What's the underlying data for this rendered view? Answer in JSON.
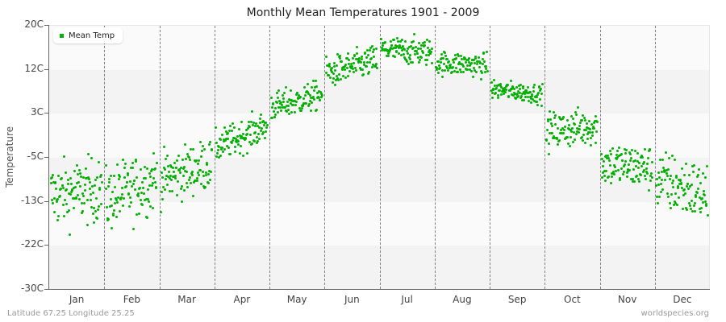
{
  "title": "Monthly Mean Temperatures 1901 - 2009",
  "footer": {
    "location": "Latitude 67.25 Longitude 25.25",
    "source": "worldspecies.org"
  },
  "colors": {
    "dot": "#00b200",
    "band_light": "#fafafa",
    "band_dark": "#f3f3f3",
    "axis": "#666666",
    "separator": "#808080"
  },
  "chart_data": {
    "type": "scatter",
    "title": "Monthly Mean Temperatures 1901 - 2009",
    "xlabel": "",
    "ylabel": "Temperature",
    "ylim": [
      -30,
      20
    ],
    "yticks": [
      {
        "value": 20,
        "label": "20C"
      },
      {
        "value": 11.67,
        "label": "12C"
      },
      {
        "value": 3.33,
        "label": "3C"
      },
      {
        "value": -5,
        "label": "-5C"
      },
      {
        "value": -13.33,
        "label": "-13C"
      },
      {
        "value": -21.67,
        "label": "-22C"
      },
      {
        "value": -30,
        "label": "-30C"
      }
    ],
    "categories": [
      "Jan",
      "Feb",
      "Mar",
      "Apr",
      "May",
      "Jun",
      "Jul",
      "Aug",
      "Sep",
      "Oct",
      "Nov",
      "Dec"
    ],
    "legend": [
      {
        "label": "Mean Temp",
        "color": "#00b200"
      }
    ],
    "legend_position": "top-left",
    "grid": "alternating horizontal bands, dashed vertical month separators",
    "points_per_month": 109,
    "series": [
      {
        "name": "Mean Temp",
        "monthly": [
          {
            "month": "Jan",
            "mean_start": -12,
            "mean_end": -11,
            "spread": 4.0,
            "min": -22,
            "max": -4
          },
          {
            "month": "Feb",
            "mean_start": -13,
            "mean_end": -9,
            "spread": 4.0,
            "min": -24,
            "max": -4
          },
          {
            "month": "Mar",
            "mean_start": -9,
            "mean_end": -6,
            "spread": 3.2,
            "min": -17,
            "max": -2
          },
          {
            "month": "Apr",
            "mean_start": -3,
            "mean_end": 1,
            "spread": 2.0,
            "min": -6,
            "max": 4
          },
          {
            "month": "May",
            "mean_start": 4.5,
            "mean_end": 7,
            "spread": 1.8,
            "min": 2,
            "max": 10
          },
          {
            "month": "Jun",
            "mean_start": 11,
            "mean_end": 13.5,
            "spread": 1.9,
            "min": 7,
            "max": 17
          },
          {
            "month": "Jul",
            "mean_start": 15.5,
            "mean_end": 15,
            "spread": 1.7,
            "min": 11,
            "max": 19
          },
          {
            "month": "Aug",
            "mean_start": 13,
            "mean_end": 12.5,
            "spread": 1.5,
            "min": 8,
            "max": 16
          },
          {
            "month": "Sep",
            "mean_start": 8,
            "mean_end": 7,
            "spread": 1.2,
            "min": 4,
            "max": 10.5
          },
          {
            "month": "Oct",
            "mean_start": 0,
            "mean_end": 1,
            "spread": 2.3,
            "min": -7,
            "max": 6
          },
          {
            "month": "Nov",
            "mean_start": -6,
            "mean_end": -7,
            "spread": 2.8,
            "min": -14,
            "max": -1
          },
          {
            "month": "Dec",
            "mean_start": -9,
            "mean_end": -12,
            "spread": 3.8,
            "min": -22,
            "max": -3
          }
        ]
      }
    ]
  }
}
